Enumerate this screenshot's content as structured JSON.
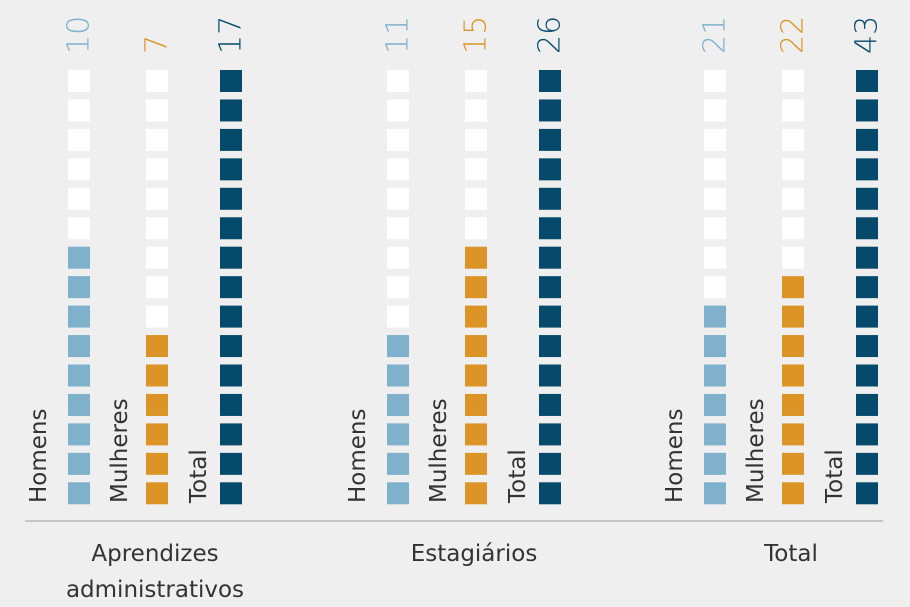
{
  "chart_data": {
    "type": "pictogram",
    "categories": [
      "Aprendizes administrativos",
      "Estagiários",
      "Total"
    ],
    "series": [
      {
        "name": "Homens",
        "color": "#7fb0cc",
        "values": [
          10,
          11,
          21
        ]
      },
      {
        "name": "Mulheres",
        "color": "#dd9426",
        "values": [
          7,
          15,
          22
        ]
      },
      {
        "name": "Total",
        "color": "#064a6b",
        "values": [
          17,
          26,
          43
        ]
      }
    ]
  }
}
